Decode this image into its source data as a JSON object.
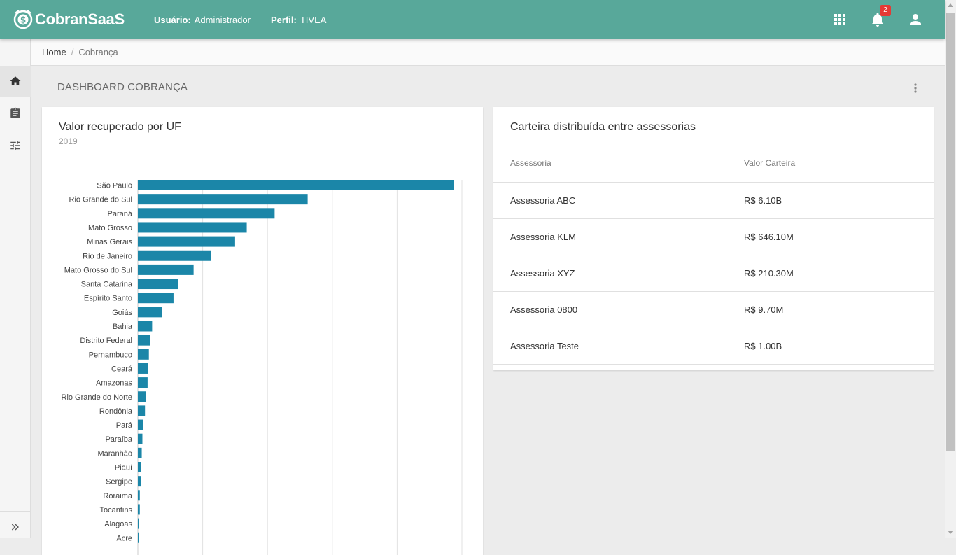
{
  "header": {
    "brand": "CobranSaaS",
    "user_label": "Usuário:",
    "user_value": "Administrador",
    "profile_label": "Perfil:",
    "profile_value": "TIVEA",
    "notification_count": "2",
    "accent_color": "#58a89a"
  },
  "breadcrumb": {
    "home": "Home",
    "separator": "/",
    "current": "Cobrança"
  },
  "page": {
    "title": "DASHBOARD COBRANÇA"
  },
  "left_card": {
    "title": "Valor recuperado por UF",
    "subtitle": "2019"
  },
  "chart_data": {
    "type": "bar",
    "orientation": "horizontal",
    "title": "Valor recuperado por UF",
    "subtitle": "2019",
    "categories": [
      "São Paulo",
      "Rio Grande do Sul",
      "Paraná",
      "Mato Grosso",
      "Minas Gerais",
      "Rio de Janeiro",
      "Mato Grosso do Sul",
      "Santa Catarina",
      "Espírito Santo",
      "Goiás",
      "Bahia",
      "Distrito Federal",
      "Pernambuco",
      "Ceará",
      "Amazonas",
      "Rio Grande do Norte",
      "Rondônia",
      "Pará",
      "Paraíba",
      "Maranhão",
      "Piauí",
      "Sergipe",
      "Roraima",
      "Tocantins",
      "Alagoas",
      "Acre"
    ],
    "values": [
      4.88,
      2.62,
      2.11,
      1.68,
      1.5,
      1.13,
      0.86,
      0.62,
      0.55,
      0.37,
      0.22,
      0.19,
      0.17,
      0.16,
      0.15,
      0.12,
      0.11,
      0.08,
      0.07,
      0.06,
      0.05,
      0.05,
      0.03,
      0.03,
      0.02,
      0.02
    ],
    "xlim": [
      0,
      5
    ],
    "bar_color": "#1b86a8",
    "grid": true
  },
  "right_card": {
    "title": "Carteira distribuída entre assessorias",
    "columns": [
      "Assessoria",
      "Valor Carteira"
    ],
    "rows": [
      [
        "Assessoria ABC",
        "R$ 6.10B"
      ],
      [
        "Assessoria KLM",
        "R$ 646.10M"
      ],
      [
        "Assessoria XYZ",
        "R$ 210.30M"
      ],
      [
        "Assessoria 0800",
        "R$ 9.70M"
      ],
      [
        "Assessoria Teste",
        "R$ 1.00B"
      ]
    ]
  },
  "icons": {
    "top": [
      "apps-icon",
      "bell-icon",
      "account-icon"
    ],
    "sidebar": [
      "home-icon",
      "clipboard-icon",
      "tune-icon",
      "chevron-double-right-icon"
    ],
    "page": [
      "more-vert-icon"
    ]
  }
}
